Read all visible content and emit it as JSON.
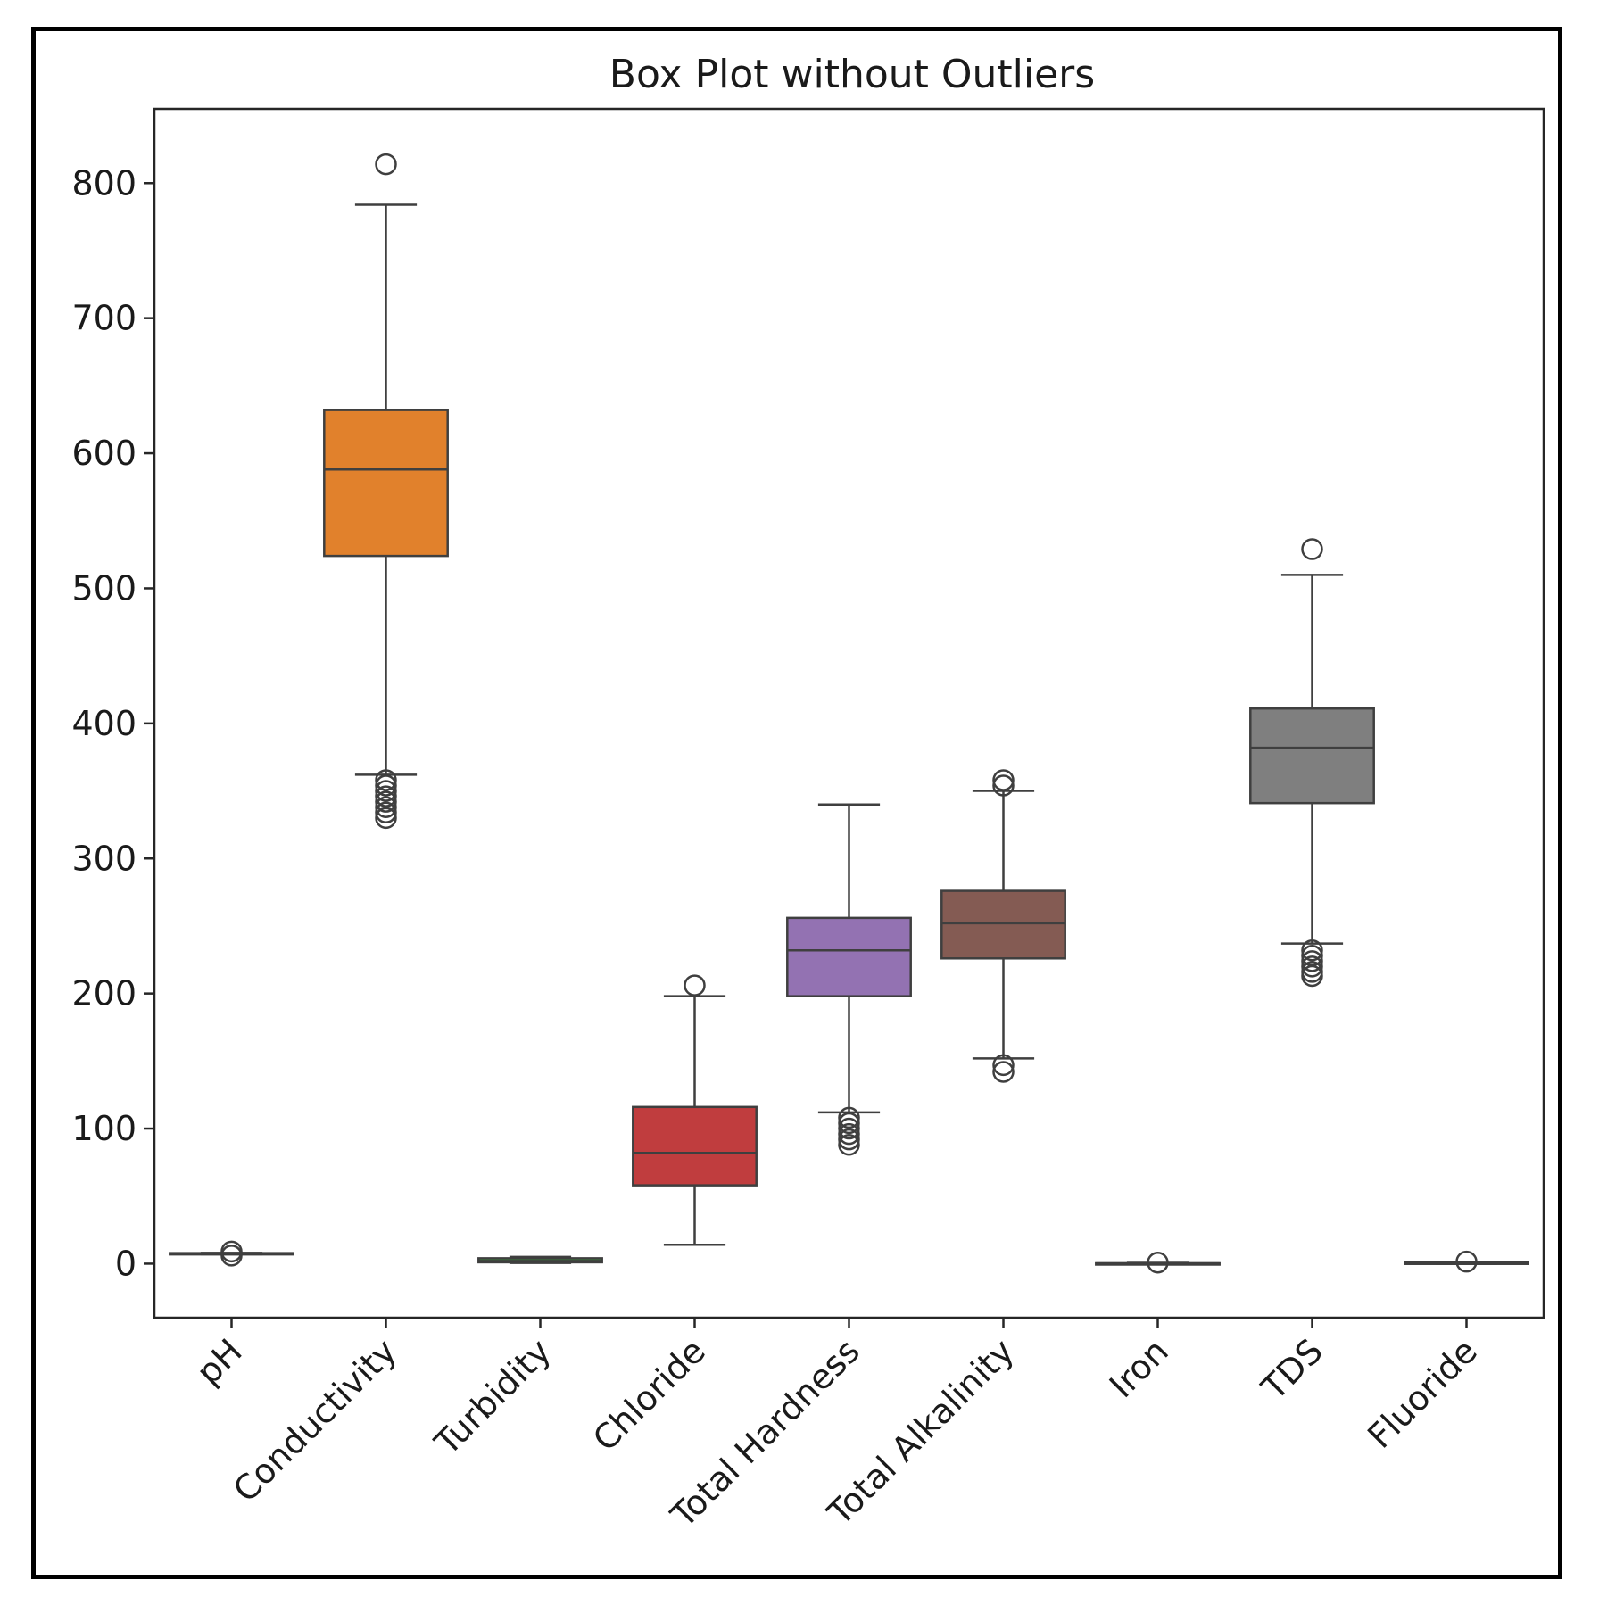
{
  "chart_data": {
    "type": "box",
    "title": "Box Plot without Outliers",
    "xlabel": "",
    "ylabel": "",
    "ylim": [
      -40,
      855
    ],
    "yticks": [
      0,
      100,
      200,
      300,
      400,
      500,
      600,
      700,
      800
    ],
    "grid": false,
    "categories": [
      "pH",
      "Conductivity",
      "Turbidity",
      "Chloride",
      "Total Hardness",
      "Total Alkalinity",
      "Iron",
      "TDS",
      "Fluoride"
    ],
    "boxes": [
      {
        "name": "pH",
        "color": "#1f77b4",
        "whisker_low": 7,
        "q1": 7.2,
        "median": 7.5,
        "q3": 7.8,
        "whisker_high": 8,
        "outliers": [
          6,
          9
        ]
      },
      {
        "name": "Conductivity",
        "color": "#e1812c",
        "whisker_low": 362,
        "q1": 524,
        "median": 588,
        "q3": 632,
        "whisker_high": 784,
        "outliers": [
          814,
          358,
          354,
          350,
          346,
          342,
          338,
          334,
          330
        ]
      },
      {
        "name": "Turbidity",
        "color": "#3a923a",
        "whisker_low": 0.5,
        "q1": 1,
        "median": 2,
        "q3": 4,
        "whisker_high": 5,
        "outliers": []
      },
      {
        "name": "Chloride",
        "color": "#c03d3e",
        "whisker_low": 14,
        "q1": 58,
        "median": 82,
        "q3": 116,
        "whisker_high": 198,
        "outliers": [
          206
        ]
      },
      {
        "name": "Total Hardness",
        "color": "#9372b2",
        "whisker_low": 112,
        "q1": 198,
        "median": 232,
        "q3": 256,
        "whisker_high": 340,
        "outliers": [
          108,
          104,
          100,
          96,
          92,
          88
        ]
      },
      {
        "name": "Total Alkalinity",
        "color": "#845b53",
        "whisker_low": 152,
        "q1": 226,
        "median": 252,
        "q3": 276,
        "whisker_high": 350,
        "outliers": [
          358,
          354,
          147,
          142
        ]
      },
      {
        "name": "Iron",
        "color": "#d684bd",
        "whisker_low": 0,
        "q1": 0.1,
        "median": 0.2,
        "q3": 0.3,
        "whisker_high": 0.6,
        "outliers": [
          0.8
        ]
      },
      {
        "name": "TDS",
        "color": "#7f7f7f",
        "whisker_low": 237,
        "q1": 341,
        "median": 382,
        "q3": 411,
        "whisker_high": 510,
        "outliers": [
          529,
          232,
          228,
          224,
          220,
          216,
          213
        ]
      },
      {
        "name": "Fluoride",
        "color": "#a9aa35",
        "whisker_low": 0,
        "q1": 0.2,
        "median": 0.5,
        "q3": 0.8,
        "whisker_high": 1.2,
        "outliers": [
          1.5
        ]
      }
    ]
  }
}
